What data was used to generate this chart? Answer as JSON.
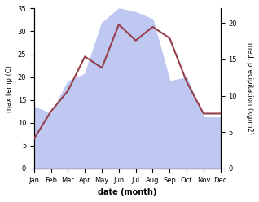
{
  "months": [
    "Jan",
    "Feb",
    "Mar",
    "Apr",
    "May",
    "Jun",
    "Jul",
    "Aug",
    "Sep",
    "Oct",
    "Nov",
    "Dec"
  ],
  "temp": [
    6.5,
    12.5,
    17.0,
    24.5,
    22.0,
    31.5,
    28.0,
    31.0,
    28.5,
    19.0,
    12.0,
    12.0
  ],
  "precip": [
    8.5,
    7.5,
    12.0,
    13.0,
    20.0,
    22.0,
    21.5,
    20.5,
    12.0,
    12.5,
    7.0,
    7.0
  ],
  "temp_color": "#943d4b",
  "precip_fill_color": "#bfc8f0",
  "ylabel_left": "max temp (C)",
  "ylabel_right": "med. precipitation (kg/m2)",
  "xlabel": "date (month)",
  "ylim_left": [
    0,
    35
  ],
  "ylim_right": [
    0,
    22
  ],
  "yticks_left": [
    0,
    5,
    10,
    15,
    20,
    25,
    30,
    35
  ],
  "yticks_right": [
    0,
    5,
    10,
    15,
    20
  ],
  "bg_color": "#ffffff",
  "plot_bg_color": "#ffffff",
  "linewidth": 1.5,
  "xlabel_fontsize": 7,
  "ylabel_fontsize": 6,
  "tick_fontsize": 6
}
